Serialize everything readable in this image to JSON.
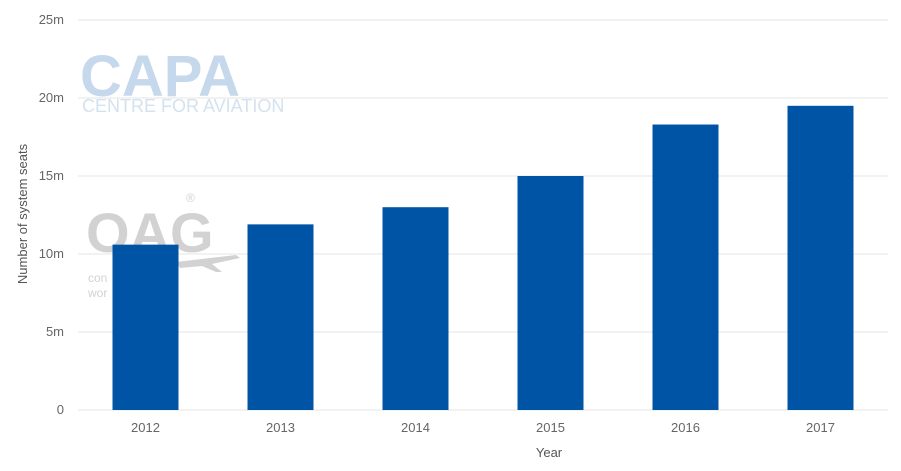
{
  "watermarks": {
    "capa_main": "CAPA",
    "capa_sub": "CENTRE FOR AVIATION",
    "oag_main": "OAG",
    "oag_registered": "®",
    "oag_sub_line1": "con",
    "oag_sub_line2": "wor"
  },
  "chart_data": {
    "type": "bar",
    "xlabel": "Year",
    "ylabel": "Number of system seats",
    "categories": [
      "2012",
      "2013",
      "2014",
      "2015",
      "2016",
      "2017"
    ],
    "values": [
      10.6,
      11.9,
      13.0,
      15.0,
      18.3,
      19.5
    ],
    "ylim": [
      0,
      25
    ],
    "y_ticks": [
      0,
      5,
      10,
      15,
      20,
      25
    ],
    "y_tick_labels": [
      "0",
      "5m",
      "10m",
      "15m",
      "20m",
      "25m"
    ],
    "grid": true,
    "legend": "none",
    "bar_color": "#0054a6",
    "value_unit": "million seats"
  }
}
